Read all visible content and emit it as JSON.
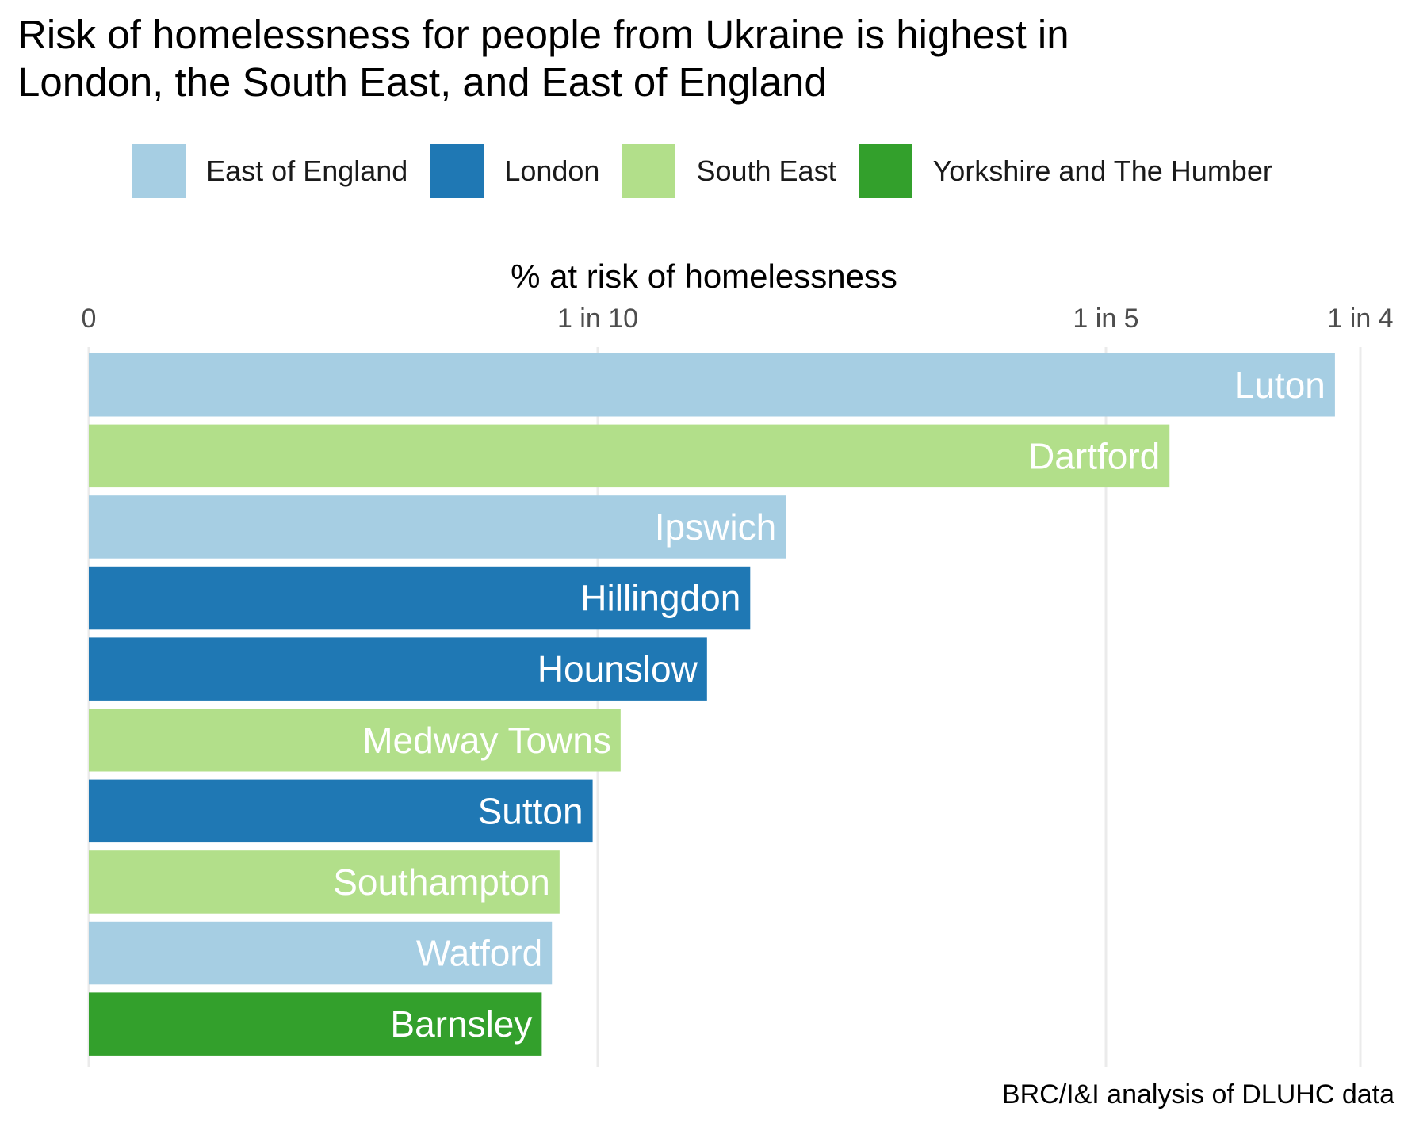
{
  "chart_data": {
    "type": "bar",
    "orientation": "horizontal",
    "title": "Risk of homelessness for people from Ukraine is highest in\nLondon, the South East, and East of England",
    "xlabel": "% at risk of homelessness",
    "ylabel": "",
    "x_axis_position": "top",
    "x_scale": "reciprocal",
    "xlim": [
      0,
      0.25
    ],
    "ticks": [
      {
        "value": 0,
        "label": "0"
      },
      {
        "value": 0.1,
        "label": "1 in 10"
      },
      {
        "value": 0.2,
        "label": "1 in 5"
      },
      {
        "value": 0.25,
        "label": "1 in 4"
      }
    ],
    "grid": true,
    "legend_position": "top",
    "legend": [
      {
        "name": "East of England",
        "color": "#a6cee3"
      },
      {
        "name": "London",
        "color": "#1f78b4"
      },
      {
        "name": "South East",
        "color": "#b2df8a"
      },
      {
        "name": "Yorkshire and The Humber",
        "color": "#33a02c"
      }
    ],
    "categories": [
      "Luton",
      "Dartford",
      "Ipswich",
      "Hillingdon",
      "Hounslow",
      "Medway Towns",
      "Sutton",
      "Southampton",
      "Watford",
      "Barnsley"
    ],
    "values": [
      0.245,
      0.2125,
      0.137,
      0.13,
      0.1215,
      0.1045,
      0.099,
      0.0925,
      0.091,
      0.089
    ],
    "regions": [
      "East of England",
      "South East",
      "East of England",
      "London",
      "London",
      "South East",
      "London",
      "South East",
      "East of England",
      "Yorkshire and The Humber"
    ],
    "caption": "BRC/I&I analysis of DLUHC data"
  }
}
